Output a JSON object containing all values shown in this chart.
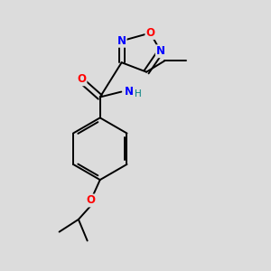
{
  "background_color": "#dcdcdc",
  "bond_color": "#000000",
  "atom_colors": {
    "O": "#ff0000",
    "N": "#0000ff",
    "NH": "#0000ff",
    "H": "#008080"
  },
  "figsize": [
    3.0,
    3.0
  ],
  "dpi": 100,
  "xlim": [
    0,
    10
  ],
  "ylim": [
    0,
    10
  ]
}
